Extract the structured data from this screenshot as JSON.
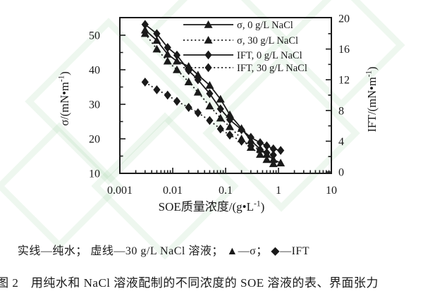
{
  "figure": {
    "legend_note": "实线—纯水； 虚线—30 g/L NaCl 溶液； ▲—σ； ◆—IFT",
    "caption": "图 2　用纯水和 NaCl 溶液配制的不同浓度的 SOE 溶液的表、界面张力"
  },
  "chart_data": {
    "type": "line",
    "title": "",
    "x_axis": {
      "label": "SOE质量浓度/(g•L⁻¹)",
      "scale": "log",
      "range": [
        0.001,
        10
      ],
      "ticks": [
        0.001,
        0.01,
        0.1,
        1,
        10
      ],
      "tick_labels": [
        "0.001",
        "0.01",
        "0.1",
        "1",
        "10"
      ]
    },
    "y_left": {
      "label": "σ/(mN•m⁻¹)",
      "range": [
        10,
        54
      ],
      "ticks": [
        10,
        20,
        30,
        40,
        50
      ],
      "minor_ticks": [
        15,
        25,
        35,
        45
      ]
    },
    "y_right": {
      "label": "IFT/(mN•m⁻¹)",
      "range": [
        0,
        20
      ],
      "ticks": [
        0,
        4,
        8,
        12,
        16,
        20
      ],
      "minor_ticks": [
        2,
        6,
        10,
        14,
        18
      ]
    },
    "legend_position": "top-right-inside",
    "grid": false,
    "series": [
      {
        "name": "σ, 0 g/L NaCl",
        "axis": "left",
        "marker": "triangle",
        "line": "solid",
        "x": [
          0.003,
          0.005,
          0.008,
          0.012,
          0.02,
          0.03,
          0.05,
          0.08,
          0.12,
          0.2,
          0.3,
          0.45,
          0.6,
          0.8,
          1.1
        ],
        "y": [
          51.5,
          48.5,
          44.5,
          42.5,
          41.0,
          38.5,
          35.5,
          31.5,
          27.0,
          23.0,
          19.5,
          17.0,
          15.5,
          14.0,
          13.0
        ]
      },
      {
        "name": "σ, 30 g/L NaCl",
        "axis": "left",
        "marker": "triangle",
        "line": "dashed",
        "x": [
          0.003,
          0.005,
          0.008,
          0.012,
          0.02,
          0.03,
          0.05,
          0.08,
          0.12,
          0.2,
          0.3,
          0.45,
          0.6,
          0.8
        ],
        "y": [
          50.5,
          46.0,
          42.5,
          40.0,
          36.5,
          33.5,
          29.5,
          26.0,
          23.5,
          20.0,
          17.5,
          15.5,
          14.0,
          12.8
        ]
      },
      {
        "name": "IFT, 0 g/L NaCl",
        "axis": "right",
        "marker": "diamond",
        "line": "solid",
        "x": [
          0.003,
          0.005,
          0.008,
          0.012,
          0.02,
          0.03,
          0.05,
          0.08,
          0.12,
          0.2,
          0.3,
          0.45,
          0.6,
          0.8,
          1.1
        ],
        "y": [
          19.2,
          18.0,
          16.2,
          15.2,
          13.2,
          12.0,
          10.2,
          8.2,
          6.8,
          5.5,
          4.5,
          3.8,
          3.4,
          3.0,
          2.8
        ]
      },
      {
        "name": "IFT, 30 g/L NaCl",
        "axis": "right",
        "marker": "diamond",
        "line": "dashed",
        "x": [
          0.003,
          0.005,
          0.008,
          0.012,
          0.02,
          0.03,
          0.05,
          0.08,
          0.12,
          0.2,
          0.3,
          0.45,
          0.6,
          0.8
        ],
        "y": [
          11.7,
          10.7,
          10.0,
          9.2,
          8.4,
          7.7,
          6.7,
          5.6,
          4.8,
          4.0,
          3.4,
          2.9,
          2.5,
          2.2
        ]
      }
    ],
    "colors": {
      "data": "#1a1a1a",
      "background": "#ffffff",
      "watermark": "#d9ecd9"
    }
  }
}
